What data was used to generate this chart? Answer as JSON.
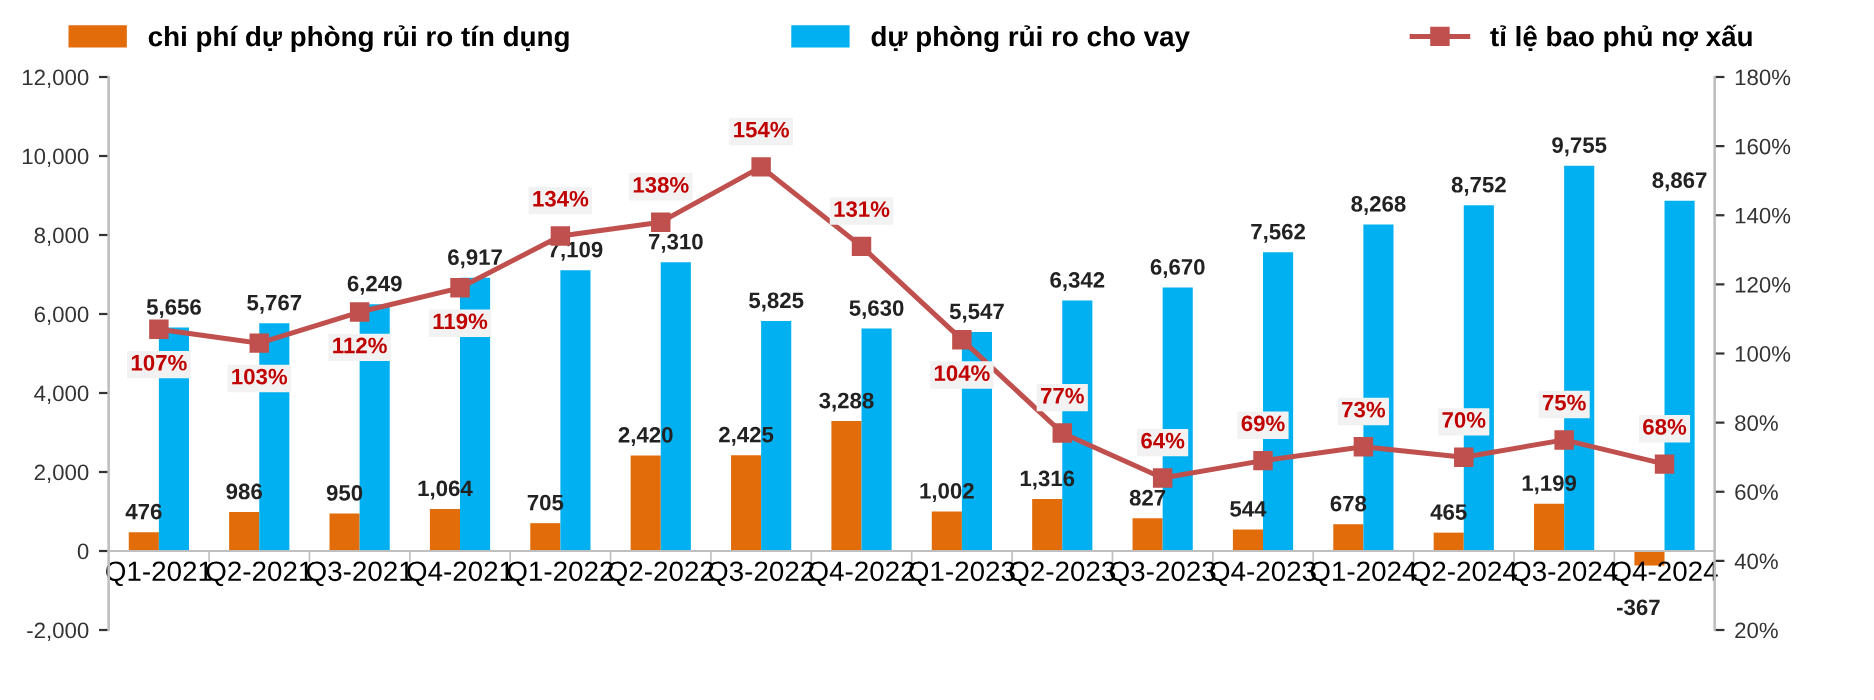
{
  "chart_data": {
    "type": "bar",
    "categories": [
      "Q1-2021",
      "Q2-2021",
      "Q3-2021",
      "Q4-2021",
      "Q1-2022",
      "Q2-2022",
      "Q3-2022",
      "Q4-2022",
      "Q1-2023",
      "Q2-2023",
      "Q3-2023",
      "Q4-2023",
      "Q1-2024",
      "Q2-2024",
      "Q3-2024",
      "Q4-2024"
    ],
    "series": [
      {
        "name": "chi phí dự phòng rủi ro tín dụng",
        "color": "#e36c0a",
        "values": [
          476,
          986,
          950,
          1064,
          705,
          2420,
          2425,
          3288,
          1002,
          1316,
          827,
          544,
          678,
          465,
          1199,
          -367
        ],
        "value_labels": [
          "476",
          "986",
          "950",
          "1,064",
          "705",
          "2,420",
          "2,425",
          "3,288",
          "1,002",
          "1,316",
          "827",
          "544",
          "678",
          "465",
          "1,199",
          "-367"
        ]
      },
      {
        "name": "dự phòng rủi ro cho vay",
        "color": "#00b0f0",
        "values": [
          5656,
          5767,
          6249,
          6917,
          7109,
          7310,
          5825,
          5630,
          5547,
          6342,
          6670,
          7562,
          8268,
          8752,
          9755,
          8867
        ],
        "value_labels": [
          "5,656",
          "5,767",
          "6,249",
          "6,917",
          "7,109",
          "7,310",
          "5,825",
          "5,630",
          "5,547",
          "6,342",
          "6,670",
          "7,562",
          "8,268",
          "8,752",
          "9,755",
          "8,867"
        ]
      },
      {
        "name": "tỉ lệ bao phủ nợ xấu",
        "type": "line",
        "axis": "y2",
        "color": "#c0504d",
        "marker": "square",
        "line_style": "solid",
        "values": [
          107,
          103,
          112,
          119,
          134,
          138,
          154,
          131,
          104,
          77,
          64,
          69,
          73,
          70,
          75,
          68
        ],
        "value_labels": [
          "107%",
          "103%",
          "112%",
          "119%",
          "134%",
          "138%",
          "154%",
          "131%",
          "104%",
          "77%",
          "64%",
          "69%",
          "73%",
          "70%",
          "75%",
          "68%"
        ]
      }
    ],
    "ylim": [
      -2000,
      12000
    ],
    "yticks": [
      {
        "value": -2000,
        "label": "-2,000"
      },
      0,
      {
        "value": 2000,
        "label": "2,000"
      },
      {
        "value": 4000,
        "label": "4,000"
      },
      {
        "value": 6000,
        "label": "6,000"
      },
      {
        "value": 8000,
        "label": "8,000"
      },
      {
        "value": 10000,
        "label": "10,000"
      },
      {
        "value": 12000,
        "label": "12,000"
      }
    ],
    "y2lim": [
      20,
      180
    ],
    "y2ticks": [
      {
        "value": 20,
        "label": "20%"
      },
      {
        "value": 40,
        "label": "40%"
      },
      {
        "value": 60,
        "label": "60%"
      },
      {
        "value": 80,
        "label": "80%"
      },
      {
        "value": 100,
        "label": "100%"
      },
      {
        "value": 120,
        "label": "120%"
      },
      {
        "value": 140,
        "label": "140%"
      },
      {
        "value": 160,
        "label": "160%"
      },
      {
        "value": 180,
        "label": "180%"
      }
    ],
    "legend": "top",
    "grid": false
  }
}
